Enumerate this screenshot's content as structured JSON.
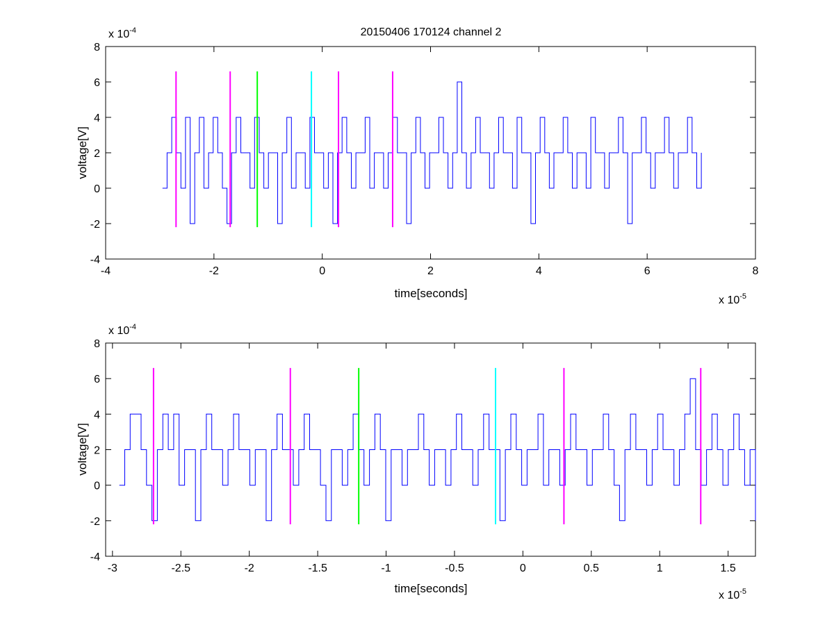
{
  "figure": {
    "title": "20150406 170124 channel 2"
  },
  "chart_data": [
    {
      "type": "line",
      "title": "20150406 170124 channel 2",
      "xlabel": "time[seconds]",
      "ylabel": "voltage[V]",
      "x_multiplier": "x 10",
      "x_multiplier_exp": "-5",
      "y_multiplier": "x 10",
      "y_multiplier_exp": "-4",
      "xlim": [
        -4e-05,
        8e-05
      ],
      "ylim": [
        -0.0004,
        0.0008
      ],
      "x_ticks": [
        -4e-05,
        -2e-05,
        0,
        2e-05,
        4e-05,
        6e-05,
        8e-05
      ],
      "x_tick_labels": [
        "-4",
        "-2",
        "0",
        "2",
        "4",
        "6",
        "8"
      ],
      "y_ticks": [
        -0.0004,
        -0.0002,
        0,
        0.0002,
        0.0004,
        0.0006,
        0.0008
      ],
      "y_tick_labels": [
        "-4",
        "-2",
        "0",
        "2",
        "4",
        "6",
        "8"
      ],
      "grid": false,
      "series": [
        {
          "color": "#0000ff",
          "x_range": [
            -2.95e-05,
            7e-05
          ],
          "values": [
            0.0,
            0.0002,
            0.0004,
            0.0002,
            0.0,
            0.0004,
            -0.0002,
            0.0002,
            0.0004,
            0.0,
            0.0002,
            0.0004,
            0.0002,
            0.0,
            -0.0002,
            0.0002,
            0.0004,
            0.0002,
            0.0002,
            0.0,
            0.0004,
            0.0002,
            0.0,
            0.0002,
            0.0002,
            -0.0002,
            0.0002,
            0.0004,
            0.0,
            0.0002,
            0.0002,
            0.0,
            0.0004,
            0.0002,
            0.0002,
            0.0,
            0.0002,
            -0.0002,
            0.0002,
            0.0004,
            0.0002,
            0.0,
            0.0002,
            0.0002,
            0.0004,
            0.0,
            0.0002,
            0.0002,
            0.0,
            0.0002,
            0.0004,
            0.0002,
            0.0002,
            -0.0002,
            0.0002,
            0.0004,
            0.0002,
            0.0,
            0.0002,
            0.0002,
            0.0004,
            0.0002,
            0.0,
            0.0002,
            0.0006,
            0.0002,
            0.0,
            0.0002,
            0.0004,
            0.0002,
            0.0002,
            0.0,
            0.0002,
            0.0004,
            0.0002,
            0.0002,
            0.0,
            0.0004,
            0.0002,
            0.0002,
            -0.0002,
            0.0002,
            0.0004,
            0.0002,
            0.0,
            0.0002,
            0.0002,
            0.0004,
            0.0002,
            0.0,
            0.0002,
            0.0002,
            0.0,
            0.0004,
            0.0002,
            0.0002,
            0.0,
            0.0002,
            0.0002,
            0.0004,
            0.0002,
            -0.0002,
            0.0002,
            0.0002,
            0.0004,
            0.0002,
            0.0,
            0.0002,
            0.0002,
            0.0004,
            0.0002,
            0.0,
            0.0002,
            0.0002,
            0.0004,
            0.0002,
            0.0,
            0.0002
          ]
        }
      ],
      "markers": [
        {
          "x": -2.7e-05,
          "color": "#ff00ff",
          "ymin": -0.00022,
          "ymax": 0.00066
        },
        {
          "x": -1.7e-05,
          "color": "#ff00ff",
          "ymin": -0.00022,
          "ymax": 0.00066
        },
        {
          "x": -1.2e-05,
          "color": "#00ff00",
          "ymin": -0.00022,
          "ymax": 0.00066
        },
        {
          "x": -2e-06,
          "color": "#00ffff",
          "ymin": -0.00022,
          "ymax": 0.00066
        },
        {
          "x": 3e-06,
          "color": "#ff00ff",
          "ymin": -0.00022,
          "ymax": 0.00066
        },
        {
          "x": 1.3e-05,
          "color": "#ff00ff",
          "ymin": -0.00022,
          "ymax": 0.00066
        }
      ]
    },
    {
      "type": "line",
      "title": "",
      "xlabel": "time[seconds]",
      "ylabel": "voltage[V]",
      "x_multiplier": "x 10",
      "x_multiplier_exp": "-5",
      "y_multiplier": "x 10",
      "y_multiplier_exp": "-4",
      "xlim": [
        -3.05e-05,
        1.7e-05
      ],
      "ylim": [
        -0.0004,
        0.0008
      ],
      "x_ticks": [
        -3e-05,
        -2.5e-05,
        -2e-05,
        -1.5e-05,
        -1e-05,
        -5e-06,
        0,
        5e-06,
        1e-05,
        1.5e-05
      ],
      "x_tick_labels": [
        "-3",
        "-2.5",
        "-2",
        "-1.5",
        "-1",
        "-0.5",
        "0",
        "0.5",
        "1",
        "1.5"
      ],
      "y_ticks": [
        -0.0004,
        -0.0002,
        0,
        0.0002,
        0.0004,
        0.0006,
        0.0008
      ],
      "y_tick_labels": [
        "-4",
        "-2",
        "0",
        "2",
        "4",
        "6",
        "8"
      ],
      "grid": false,
      "series": [
        {
          "color": "#0000ff",
          "x_range": [
            -2.95e-05,
            1.7e-05
          ],
          "values": [
            0.0,
            0.0002,
            0.0004,
            0.0004,
            0.0002,
            0.0,
            -0.0002,
            0.0002,
            0.0004,
            0.0002,
            0.0004,
            0.0,
            0.0002,
            0.0002,
            -0.0002,
            0.0002,
            0.0004,
            0.0002,
            0.0002,
            0.0,
            0.0002,
            0.0004,
            0.0002,
            0.0002,
            0.0,
            0.0002,
            0.0002,
            -0.0002,
            0.0002,
            0.0004,
            0.0002,
            0.0002,
            0.0,
            0.0002,
            0.0004,
            0.0002,
            0.0002,
            0.0,
            -0.0002,
            0.0002,
            0.0002,
            0.0,
            0.0002,
            0.0004,
            0.0002,
            0.0,
            0.0002,
            0.0004,
            0.0002,
            -0.0002,
            0.0002,
            0.0002,
            0.0,
            0.0002,
            0.0002,
            0.0004,
            0.0002,
            0.0,
            0.0002,
            0.0002,
            0.0,
            0.0002,
            0.0004,
            0.0002,
            0.0002,
            0.0,
            0.0002,
            0.0004,
            0.0002,
            0.0002,
            -0.0002,
            0.0002,
            0.0004,
            0.0002,
            0.0,
            0.0002,
            0.0002,
            0.0004,
            0.0,
            0.0002,
            0.0002,
            0.0,
            0.0002,
            0.0004,
            0.0002,
            0.0002,
            0.0,
            0.0002,
            0.0002,
            0.0004,
            0.0002,
            0.0,
            -0.0002,
            0.0002,
            0.0004,
            0.0002,
            0.0002,
            0.0,
            0.0002,
            0.0004,
            0.0002,
            0.0002,
            0.0,
            0.0002,
            0.0004,
            0.0006,
            0.0002,
            0.0,
            0.0002,
            0.0004,
            0.0002,
            0.0,
            0.0002,
            0.0004,
            0.0002,
            0.0,
            0.0002,
            -0.0002
          ]
        }
      ],
      "markers": [
        {
          "x": -2.7e-05,
          "color": "#ff00ff",
          "ymin": -0.00022,
          "ymax": 0.00066
        },
        {
          "x": -1.7e-05,
          "color": "#ff00ff",
          "ymin": -0.00022,
          "ymax": 0.00066
        },
        {
          "x": -1.2e-05,
          "color": "#00ff00",
          "ymin": -0.00022,
          "ymax": 0.00066
        },
        {
          "x": -2e-06,
          "color": "#00ffff",
          "ymin": -0.00022,
          "ymax": 0.00066
        },
        {
          "x": 3e-06,
          "color": "#ff00ff",
          "ymin": -0.00022,
          "ymax": 0.00066
        },
        {
          "x": 1.3e-05,
          "color": "#ff00ff",
          "ymin": -0.00022,
          "ymax": 0.00066
        }
      ]
    }
  ]
}
